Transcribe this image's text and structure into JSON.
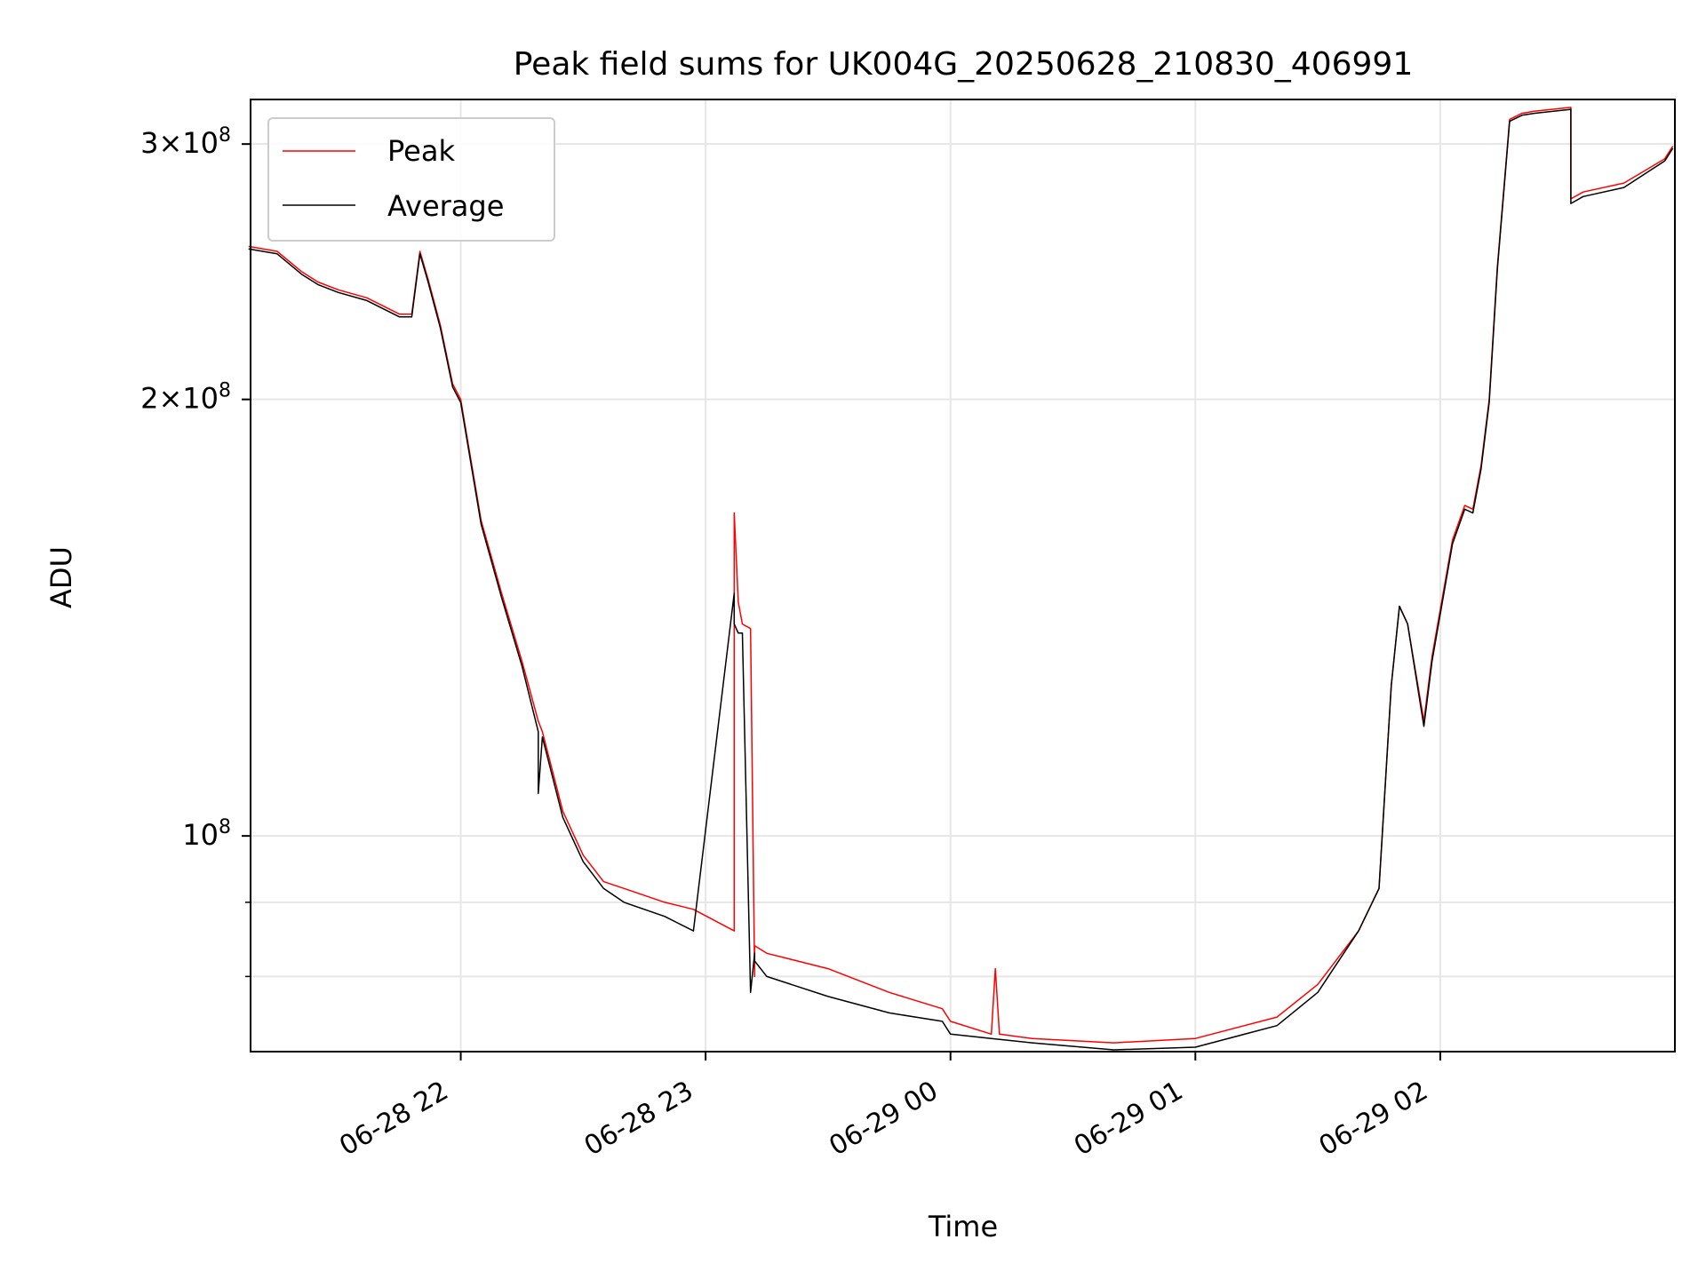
{
  "chart_data": {
    "type": "line",
    "title": "Peak field sums for UK004G_20250628_210830_406991",
    "xlabel": "Time",
    "ylabel": "ADU",
    "yscale": "log",
    "xlim": [
      "2025-06-28 21:08:30",
      "2025-06-29 02:57:30"
    ],
    "ylim": [
      71000000,
      322000000
    ],
    "grid": true,
    "legend_position": "upper left",
    "x_ticks": [
      {
        "value": "2025-06-28 22:00",
        "label": "06-28 22"
      },
      {
        "value": "2025-06-28 23:00",
        "label": "06-28 23"
      },
      {
        "value": "2025-06-29 00:00",
        "label": "06-29 00"
      },
      {
        "value": "2025-06-29 01:00",
        "label": "06-29 01"
      },
      {
        "value": "2025-06-29 02:00",
        "label": "06-29 02"
      }
    ],
    "y_ticks": [
      {
        "value": 100000000,
        "base": "10",
        "exp": "8",
        "coef": ""
      },
      {
        "value": 200000000,
        "base": "2×10",
        "exp": "8",
        "coef": ""
      },
      {
        "value": 300000000,
        "base": "3×10",
        "exp": "8",
        "coef": ""
      }
    ],
    "y_minor_ticks": [
      80000000,
      90000000
    ],
    "series": [
      {
        "name": "Peak",
        "color": "#ff0000",
        "x": [
          "2025-06-28 21:08",
          "2025-06-28 21:15",
          "2025-06-28 21:21",
          "2025-06-28 21:25",
          "2025-06-28 21:30",
          "2025-06-28 21:37",
          "2025-06-28 21:45",
          "2025-06-28 21:48",
          "2025-06-28 21:50",
          "2025-06-28 21:52",
          "2025-06-28 21:55",
          "2025-06-28 21:58",
          "2025-06-28 22:00",
          "2025-06-28 22:05",
          "2025-06-28 22:10",
          "2025-06-28 22:15",
          "2025-06-28 22:19",
          "2025-06-28 22:20",
          "2025-06-28 22:25",
          "2025-06-28 22:30",
          "2025-06-28 22:35",
          "2025-06-28 22:40",
          "2025-06-28 22:50",
          "2025-06-28 22:57",
          "2025-06-28 23:07",
          "2025-06-28 23:07",
          "2025-06-28 23:08",
          "2025-06-28 23:09",
          "2025-06-28 23:11",
          "2025-06-28 23:12",
          "2025-06-28 23:12",
          "2025-06-28 23:15",
          "2025-06-28 23:30",
          "2025-06-28 23:45",
          "2025-06-28 23:58",
          "2025-06-29 00:00",
          "2025-06-29 00:10",
          "2025-06-29 00:11",
          "2025-06-29 00:12",
          "2025-06-29 00:20",
          "2025-06-29 00:40",
          "2025-06-29 01:00",
          "2025-06-29 01:20",
          "2025-06-29 01:30",
          "2025-06-29 01:40",
          "2025-06-29 01:45",
          "2025-06-29 01:48",
          "2025-06-29 01:50",
          "2025-06-29 01:52",
          "2025-06-29 01:56",
          "2025-06-29 01:58",
          "2025-06-29 02:03",
          "2025-06-29 02:06",
          "2025-06-29 02:08",
          "2025-06-29 02:10",
          "2025-06-29 02:12",
          "2025-06-29 02:14",
          "2025-06-29 02:17",
          "2025-06-29 02:20",
          "2025-06-29 02:23",
          "2025-06-29 02:32",
          "2025-06-29 02:32",
          "2025-06-29 02:35",
          "2025-06-29 02:45",
          "2025-06-29 02:55",
          "2025-06-29 02:57"
        ],
        "values": [
          255000000,
          253000000,
          245000000,
          241000000,
          238000000,
          235000000,
          229000000,
          229000000,
          253000000,
          242000000,
          225000000,
          205000000,
          200000000,
          165000000,
          147000000,
          132000000,
          120000000,
          118000000,
          104000000,
          97000000,
          93000000,
          92000000,
          90000000,
          89000000,
          86000000,
          167000000,
          145000000,
          140000000,
          139000000,
          80000000,
          84000000,
          83000000,
          81000000,
          78000000,
          76000000,
          74500000,
          73000000,
          81000000,
          73000000,
          72500000,
          72000000,
          72500000,
          75000000,
          79000000,
          86000000,
          92000000,
          127000000,
          144000000,
          140000000,
          120000000,
          133000000,
          160000000,
          169000000,
          168000000,
          180000000,
          200000000,
          247000000,
          312000000,
          315000000,
          316000000,
          318000000,
          275000000,
          278000000,
          282000000,
          293000000,
          299000000
        ]
      },
      {
        "name": "Average",
        "color": "#000000",
        "x": [
          "2025-06-28 21:08",
          "2025-06-28 21:15",
          "2025-06-28 21:21",
          "2025-06-28 21:25",
          "2025-06-28 21:30",
          "2025-06-28 21:37",
          "2025-06-28 21:45",
          "2025-06-28 21:48",
          "2025-06-28 21:50",
          "2025-06-28 21:52",
          "2025-06-28 21:55",
          "2025-06-28 21:58",
          "2025-06-28 22:00",
          "2025-06-28 22:05",
          "2025-06-28 22:10",
          "2025-06-28 22:15",
          "2025-06-28 22:19",
          "2025-06-28 22:19",
          "2025-06-28 22:20",
          "2025-06-28 22:25",
          "2025-06-28 22:30",
          "2025-06-28 22:35",
          "2025-06-28 22:40",
          "2025-06-28 22:50",
          "2025-06-28 22:57",
          "2025-06-28 23:07",
          "2025-06-28 23:07",
          "2025-06-28 23:08",
          "2025-06-28 23:09",
          "2025-06-28 23:11",
          "2025-06-28 23:12",
          "2025-06-28 23:12",
          "2025-06-28 23:15",
          "2025-06-28 23:30",
          "2025-06-28 23:45",
          "2025-06-28 23:58",
          "2025-06-29 00:00",
          "2025-06-29 00:10",
          "2025-06-29 00:20",
          "2025-06-29 00:40",
          "2025-06-29 01:00",
          "2025-06-29 01:20",
          "2025-06-29 01:30",
          "2025-06-29 01:40",
          "2025-06-29 01:45",
          "2025-06-29 01:48",
          "2025-06-29 01:50",
          "2025-06-29 01:52",
          "2025-06-29 01:56",
          "2025-06-29 01:58",
          "2025-06-29 02:03",
          "2025-06-29 02:06",
          "2025-06-29 02:08",
          "2025-06-29 02:10",
          "2025-06-29 02:12",
          "2025-06-29 02:14",
          "2025-06-29 02:17",
          "2025-06-29 02:20",
          "2025-06-29 02:23",
          "2025-06-29 02:32",
          "2025-06-29 02:32",
          "2025-06-29 02:35",
          "2025-06-29 02:45",
          "2025-06-29 02:55",
          "2025-06-29 02:57"
        ],
        "values": [
          254000000,
          252000000,
          244000000,
          240000000,
          237000000,
          234000000,
          228000000,
          228000000,
          252000000,
          241000000,
          224000000,
          204000000,
          199000000,
          164000000,
          146000000,
          131000000,
          118000000,
          107000000,
          117000000,
          103000000,
          96000000,
          92000000,
          90000000,
          88000000,
          86000000,
          147000000,
          140000000,
          138000000,
          138000000,
          78000000,
          83000000,
          82000000,
          80000000,
          77500000,
          75500000,
          74500000,
          73000000,
          72500000,
          72000000,
          71200000,
          71500000,
          74000000,
          78000000,
          86000000,
          92000000,
          127000000,
          144000000,
          140000000,
          119000000,
          132000000,
          159000000,
          168000000,
          167000000,
          179000000,
          199000000,
          246000000,
          311000000,
          314000000,
          315000000,
          317000000,
          273000000,
          276000000,
          280000000,
          292000000,
          298000000
        ]
      }
    ]
  }
}
